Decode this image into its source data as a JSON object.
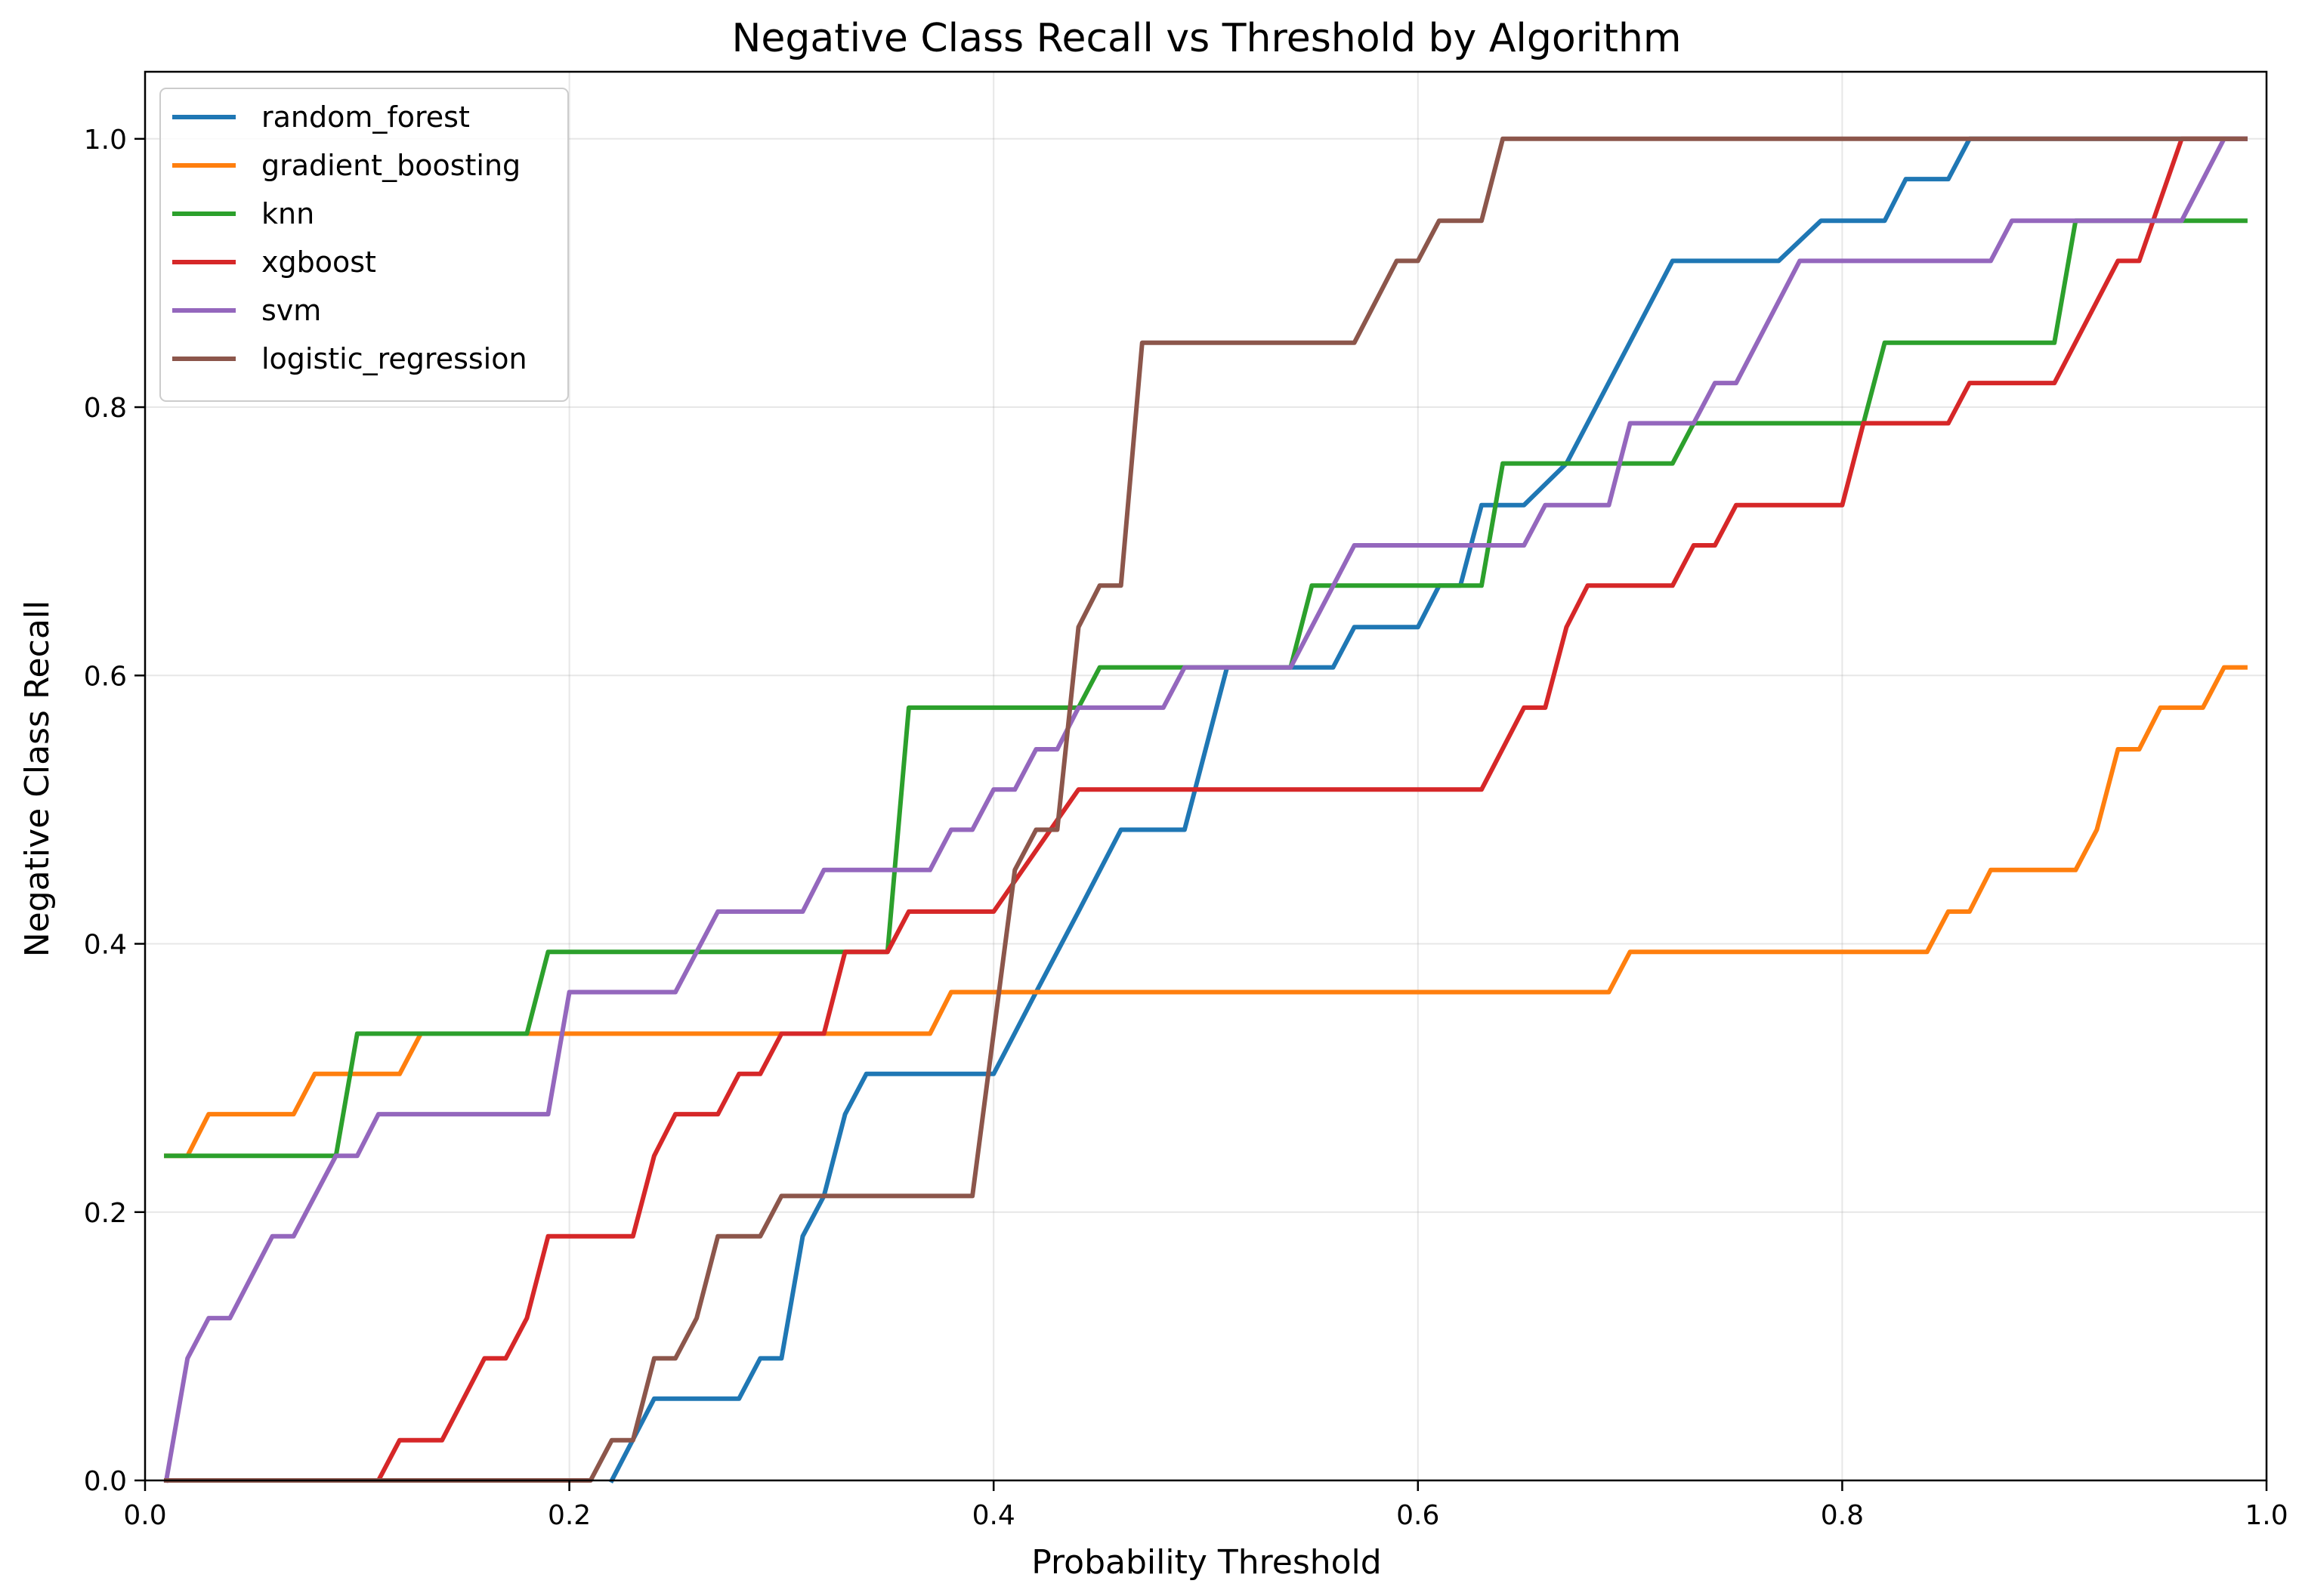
{
  "chart_data": {
    "type": "line",
    "title": "Negative Class Recall vs Threshold by Algorithm",
    "xlabel": "Probability Threshold",
    "ylabel": "Negative Class Recall",
    "xlim": [
      0.0,
      1.0
    ],
    "ylim": [
      0.0,
      1.05
    ],
    "xticks": [
      0.0,
      0.2,
      0.4,
      0.6,
      0.8,
      1.0
    ],
    "xtick_labels": [
      "0.0",
      "0.2",
      "0.4",
      "0.6",
      "0.8",
      "1.0"
    ],
    "yticks": [
      0.0,
      0.2,
      0.4,
      0.6,
      0.8,
      1.0
    ],
    "ytick_labels": [
      "0.0",
      "0.2",
      "0.4",
      "0.6",
      "0.8",
      "1.0"
    ],
    "grid": true,
    "legend_position": "upper-left",
    "series": [
      {
        "name": "random_forest",
        "color": "#1f77b4",
        "points": [
          [
            0.22,
            0.0
          ],
          [
            0.24,
            0.061
          ],
          [
            0.28,
            0.061
          ],
          [
            0.29,
            0.091
          ],
          [
            0.3,
            0.091
          ],
          [
            0.31,
            0.182
          ],
          [
            0.32,
            0.212
          ],
          [
            0.33,
            0.273
          ],
          [
            0.34,
            0.303
          ],
          [
            0.4,
            0.303
          ],
          [
            0.42,
            0.364
          ],
          [
            0.44,
            0.424
          ],
          [
            0.46,
            0.485
          ],
          [
            0.49,
            0.485
          ],
          [
            0.51,
            0.606
          ],
          [
            0.56,
            0.606
          ],
          [
            0.57,
            0.636
          ],
          [
            0.6,
            0.636
          ],
          [
            0.61,
            0.667
          ],
          [
            0.62,
            0.667
          ],
          [
            0.63,
            0.727
          ],
          [
            0.65,
            0.727
          ],
          [
            0.67,
            0.758
          ],
          [
            0.72,
            0.909
          ],
          [
            0.77,
            0.909
          ],
          [
            0.79,
            0.939
          ],
          [
            0.82,
            0.939
          ],
          [
            0.83,
            0.97
          ],
          [
            0.85,
            0.97
          ],
          [
            0.86,
            1.0
          ],
          [
            0.99,
            1.0
          ]
        ]
      },
      {
        "name": "gradient_boosting",
        "color": "#ff7f0e",
        "points": [
          [
            0.01,
            0.242
          ],
          [
            0.02,
            0.242
          ],
          [
            0.03,
            0.273
          ],
          [
            0.07,
            0.273
          ],
          [
            0.08,
            0.303
          ],
          [
            0.12,
            0.303
          ],
          [
            0.13,
            0.333
          ],
          [
            0.37,
            0.333
          ],
          [
            0.38,
            0.364
          ],
          [
            0.69,
            0.364
          ],
          [
            0.7,
            0.394
          ],
          [
            0.84,
            0.394
          ],
          [
            0.85,
            0.424
          ],
          [
            0.86,
            0.424
          ],
          [
            0.87,
            0.455
          ],
          [
            0.91,
            0.455
          ],
          [
            0.92,
            0.485
          ],
          [
            0.93,
            0.545
          ],
          [
            0.94,
            0.545
          ],
          [
            0.95,
            0.576
          ],
          [
            0.97,
            0.576
          ],
          [
            0.98,
            0.606
          ],
          [
            0.99,
            0.606
          ]
        ]
      },
      {
        "name": "knn",
        "color": "#2ca02c",
        "points": [
          [
            0.01,
            0.242
          ],
          [
            0.09,
            0.242
          ],
          [
            0.1,
            0.333
          ],
          [
            0.18,
            0.333
          ],
          [
            0.19,
            0.394
          ],
          [
            0.35,
            0.394
          ],
          [
            0.36,
            0.576
          ],
          [
            0.44,
            0.576
          ],
          [
            0.45,
            0.606
          ],
          [
            0.54,
            0.606
          ],
          [
            0.55,
            0.667
          ],
          [
            0.63,
            0.667
          ],
          [
            0.64,
            0.758
          ],
          [
            0.72,
            0.758
          ],
          [
            0.73,
            0.788
          ],
          [
            0.81,
            0.788
          ],
          [
            0.82,
            0.848
          ],
          [
            0.9,
            0.848
          ],
          [
            0.91,
            0.939
          ],
          [
            0.99,
            0.939
          ]
        ]
      },
      {
        "name": "xgboost",
        "color": "#d62728",
        "points": [
          [
            0.01,
            0.0
          ],
          [
            0.11,
            0.0
          ],
          [
            0.12,
            0.03
          ],
          [
            0.14,
            0.03
          ],
          [
            0.16,
            0.091
          ],
          [
            0.17,
            0.091
          ],
          [
            0.18,
            0.121
          ],
          [
            0.19,
            0.182
          ],
          [
            0.23,
            0.182
          ],
          [
            0.24,
            0.242
          ],
          [
            0.25,
            0.273
          ],
          [
            0.27,
            0.273
          ],
          [
            0.28,
            0.303
          ],
          [
            0.29,
            0.303
          ],
          [
            0.3,
            0.333
          ],
          [
            0.32,
            0.333
          ],
          [
            0.33,
            0.394
          ],
          [
            0.35,
            0.394
          ],
          [
            0.36,
            0.424
          ],
          [
            0.4,
            0.424
          ],
          [
            0.44,
            0.515
          ],
          [
            0.63,
            0.515
          ],
          [
            0.65,
            0.576
          ],
          [
            0.66,
            0.576
          ],
          [
            0.67,
            0.636
          ],
          [
            0.68,
            0.667
          ],
          [
            0.72,
            0.667
          ],
          [
            0.73,
            0.697
          ],
          [
            0.74,
            0.697
          ],
          [
            0.75,
            0.727
          ],
          [
            0.8,
            0.727
          ],
          [
            0.81,
            0.788
          ],
          [
            0.85,
            0.788
          ],
          [
            0.86,
            0.818
          ],
          [
            0.9,
            0.818
          ],
          [
            0.93,
            0.909
          ],
          [
            0.94,
            0.909
          ],
          [
            0.96,
            1.0
          ],
          [
            0.99,
            1.0
          ]
        ]
      },
      {
        "name": "svm",
        "color": "#9467bd",
        "points": [
          [
            0.01,
            0.0
          ],
          [
            0.02,
            0.091
          ],
          [
            0.03,
            0.121
          ],
          [
            0.04,
            0.121
          ],
          [
            0.06,
            0.182
          ],
          [
            0.07,
            0.182
          ],
          [
            0.09,
            0.242
          ],
          [
            0.1,
            0.242
          ],
          [
            0.11,
            0.273
          ],
          [
            0.19,
            0.273
          ],
          [
            0.2,
            0.364
          ],
          [
            0.25,
            0.364
          ],
          [
            0.27,
            0.424
          ],
          [
            0.31,
            0.424
          ],
          [
            0.32,
            0.455
          ],
          [
            0.37,
            0.455
          ],
          [
            0.38,
            0.485
          ],
          [
            0.39,
            0.485
          ],
          [
            0.4,
            0.515
          ],
          [
            0.41,
            0.515
          ],
          [
            0.42,
            0.545
          ],
          [
            0.43,
            0.545
          ],
          [
            0.44,
            0.576
          ],
          [
            0.48,
            0.576
          ],
          [
            0.49,
            0.606
          ],
          [
            0.54,
            0.606
          ],
          [
            0.57,
            0.697
          ],
          [
            0.65,
            0.697
          ],
          [
            0.66,
            0.727
          ],
          [
            0.69,
            0.727
          ],
          [
            0.7,
            0.788
          ],
          [
            0.73,
            0.788
          ],
          [
            0.74,
            0.818
          ],
          [
            0.75,
            0.818
          ],
          [
            0.78,
            0.909
          ],
          [
            0.87,
            0.909
          ],
          [
            0.88,
            0.939
          ],
          [
            0.96,
            0.939
          ],
          [
            0.98,
            1.0
          ],
          [
            0.99,
            1.0
          ]
        ]
      },
      {
        "name": "logistic_regression",
        "color": "#8c564b",
        "points": [
          [
            0.01,
            0.0
          ],
          [
            0.21,
            0.0
          ],
          [
            0.22,
            0.03
          ],
          [
            0.23,
            0.03
          ],
          [
            0.24,
            0.091
          ],
          [
            0.25,
            0.091
          ],
          [
            0.26,
            0.121
          ],
          [
            0.27,
            0.182
          ],
          [
            0.29,
            0.182
          ],
          [
            0.3,
            0.212
          ],
          [
            0.39,
            0.212
          ],
          [
            0.41,
            0.455
          ],
          [
            0.42,
            0.485
          ],
          [
            0.43,
            0.485
          ],
          [
            0.44,
            0.636
          ],
          [
            0.45,
            0.667
          ],
          [
            0.46,
            0.667
          ],
          [
            0.47,
            0.848
          ],
          [
            0.57,
            0.848
          ],
          [
            0.59,
            0.909
          ],
          [
            0.6,
            0.909
          ],
          [
            0.61,
            0.939
          ],
          [
            0.63,
            0.939
          ],
          [
            0.64,
            1.0
          ],
          [
            0.99,
            1.0
          ]
        ]
      }
    ]
  }
}
